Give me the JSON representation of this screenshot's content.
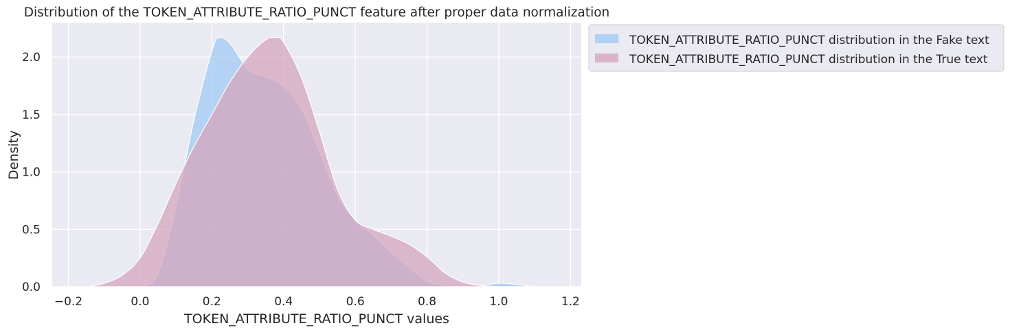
{
  "chart_data": {
    "type": "area",
    "title": "Distribution of the TOKEN_ATTRIBUTE_RATIO_PUNCT feature after proper data normalization",
    "xlabel": "TOKEN_ATTRIBUTE_RATIO_PUNCT values",
    "ylabel": "Density",
    "xlim": [
      -0.245,
      1.23
    ],
    "ylim": [
      0,
      2.3
    ],
    "xticks": [
      -0.2,
      0.0,
      0.2,
      0.4,
      0.6,
      0.8,
      1.0,
      1.2
    ],
    "xtick_labels": [
      "−0.2",
      "0.0",
      "0.2",
      "0.4",
      "0.6",
      "0.8",
      "1.0",
      "1.2"
    ],
    "yticks": [
      0.0,
      0.5,
      1.0,
      1.5,
      2.0
    ],
    "ytick_labels": [
      "0.0",
      "0.5",
      "1.0",
      "1.5",
      "2.0"
    ],
    "grid": true,
    "legend_position": "outside-upper-right",
    "background": "#eaeaf2",
    "series": [
      {
        "name": "TOKEN_ATTRIBUTE_RATIO_PUNCT distribution in the Fake text",
        "color": "#a1c9f4",
        "x": [
          -0.2,
          -0.1,
          0.0,
          0.05,
          0.1,
          0.15,
          0.2,
          0.22,
          0.25,
          0.3,
          0.35,
          0.4,
          0.45,
          0.5,
          0.55,
          0.6,
          0.65,
          0.7,
          0.75,
          0.8,
          0.85,
          0.9,
          0.95,
          1.0,
          1.05,
          1.1,
          1.15
        ],
        "y": [
          0.0,
          0.0,
          0.0,
          0.12,
          0.7,
          1.45,
          2.05,
          2.17,
          2.12,
          1.9,
          1.83,
          1.75,
          1.55,
          1.18,
          0.8,
          0.58,
          0.45,
          0.3,
          0.17,
          0.05,
          0.01,
          0.0,
          0.01,
          0.03,
          0.02,
          0.0,
          0.0
        ]
      },
      {
        "name": "TOKEN_ATTRIBUTE_RATIO_PUNCT distribution in the True text",
        "color": "#d6a5bd",
        "x": [
          -0.2,
          -0.15,
          -0.1,
          -0.05,
          0.0,
          0.05,
          0.1,
          0.15,
          0.2,
          0.25,
          0.3,
          0.35,
          0.38,
          0.4,
          0.45,
          0.5,
          0.55,
          0.6,
          0.65,
          0.7,
          0.75,
          0.8,
          0.85,
          0.9,
          0.95,
          1.0,
          1.1,
          1.15
        ],
        "y": [
          0.0,
          0.0,
          0.03,
          0.1,
          0.25,
          0.55,
          0.9,
          1.22,
          1.5,
          1.78,
          2.0,
          2.15,
          2.17,
          2.13,
          1.82,
          1.35,
          0.85,
          0.58,
          0.5,
          0.44,
          0.37,
          0.26,
          0.12,
          0.04,
          0.01,
          0.0,
          0.0,
          0.0
        ]
      }
    ]
  }
}
